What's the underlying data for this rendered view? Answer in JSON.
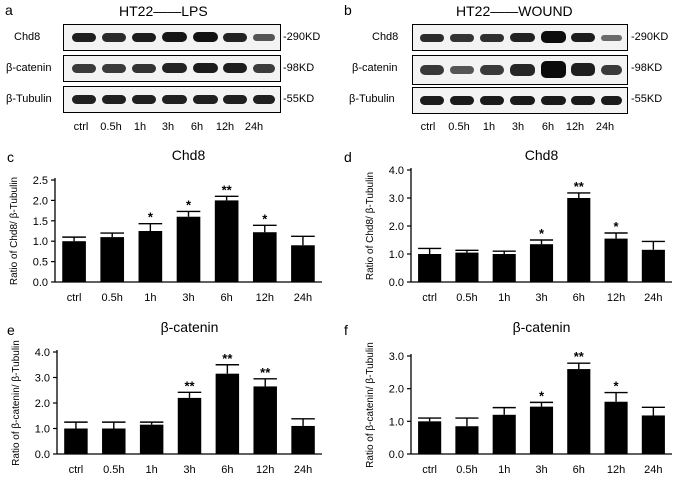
{
  "panels": {
    "a": {
      "letter": "a",
      "title": "HT22——LPS",
      "rows": [
        "Chd8",
        "β-catenin",
        "β-Tubulin"
      ],
      "sizes": [
        "-290KD",
        "-98KD",
        "-55KD"
      ],
      "lanes": [
        "ctrl",
        "0.5h",
        "1h",
        "3h",
        "6h",
        "12h",
        "24h"
      ]
    },
    "b": {
      "letter": "b",
      "title": "HT22——WOUND",
      "rows": [
        "Chd8",
        "β-catenin",
        "β-Tubulin"
      ],
      "sizes": [
        "-290KD",
        "-98KD",
        "-55KD"
      ],
      "lanes": [
        "ctrl",
        "0.5h",
        "1h",
        "3h",
        "6h",
        "12h",
        "24h"
      ]
    }
  },
  "chart_data": [
    {
      "panel": "c",
      "type": "bar",
      "title": "Chd8",
      "ylabel": "Ratio of Chd8/ β-Tubulin",
      "xlabel": "",
      "categories": [
        "ctrl",
        "0.5h",
        "1h",
        "3h",
        "6h",
        "12h",
        "24h"
      ],
      "values": [
        1.0,
        1.1,
        1.25,
        1.6,
        2.0,
        1.22,
        0.9
      ],
      "errors": [
        0.1,
        0.1,
        0.18,
        0.13,
        0.1,
        0.17,
        0.22
      ],
      "significance": [
        "",
        "",
        "*",
        "*",
        "**",
        "*",
        ""
      ],
      "ylim": [
        0,
        2.5
      ],
      "yticks": [
        "0.0",
        "0.5",
        "1.0",
        "1.5",
        "2.0",
        "2.5"
      ]
    },
    {
      "panel": "d",
      "type": "bar",
      "title": "Chd8",
      "ylabel": "Ratio of Chd8/ β-Tubulin",
      "xlabel": "",
      "categories": [
        "ctrl",
        "0.5h",
        "1h",
        "3h",
        "6h",
        "12h",
        "24h"
      ],
      "values": [
        1.0,
        1.05,
        1.0,
        1.35,
        3.0,
        1.55,
        1.15
      ],
      "errors": [
        0.2,
        0.08,
        0.1,
        0.15,
        0.18,
        0.2,
        0.3
      ],
      "significance": [
        "",
        "",
        "",
        "*",
        "**",
        "*",
        ""
      ],
      "ylim": [
        0,
        4.0
      ],
      "yticks": [
        "0.0",
        "1.0",
        "2.0",
        "3.0",
        "4.0"
      ]
    },
    {
      "panel": "e",
      "type": "bar",
      "title": "β-catenin",
      "ylabel": "Ratio of β-catenin/ β-Tubulin",
      "xlabel": "",
      "categories": [
        "ctrl",
        "0.5h",
        "1h",
        "3h",
        "6h",
        "12h",
        "24h"
      ],
      "values": [
        1.0,
        1.0,
        1.15,
        2.2,
        3.15,
        2.65,
        1.1
      ],
      "errors": [
        0.25,
        0.25,
        0.1,
        0.22,
        0.35,
        0.3,
        0.28
      ],
      "significance": [
        "",
        "",
        "",
        "**",
        "**",
        "**",
        ""
      ],
      "ylim": [
        0,
        4.0
      ],
      "yticks": [
        "0.0",
        "1.0",
        "2.0",
        "3.0",
        "4.0"
      ]
    },
    {
      "panel": "f",
      "type": "bar",
      "title": "β-catenin",
      "ylabel": "Ratio of β-catenin/ β-Tubulin",
      "xlabel": "",
      "categories": [
        "ctrl",
        "0.5h",
        "1h",
        "3h",
        "6h",
        "12h",
        "24h"
      ],
      "values": [
        1.0,
        0.85,
        1.2,
        1.45,
        2.6,
        1.6,
        1.18
      ],
      "errors": [
        0.1,
        0.25,
        0.22,
        0.13,
        0.18,
        0.28,
        0.25
      ],
      "significance": [
        "",
        "",
        "",
        "*",
        "**",
        "*",
        ""
      ],
      "ylim": [
        0,
        3.0
      ],
      "yticks": [
        "0.0",
        "1.0",
        "2.0",
        "3.0"
      ]
    }
  ]
}
